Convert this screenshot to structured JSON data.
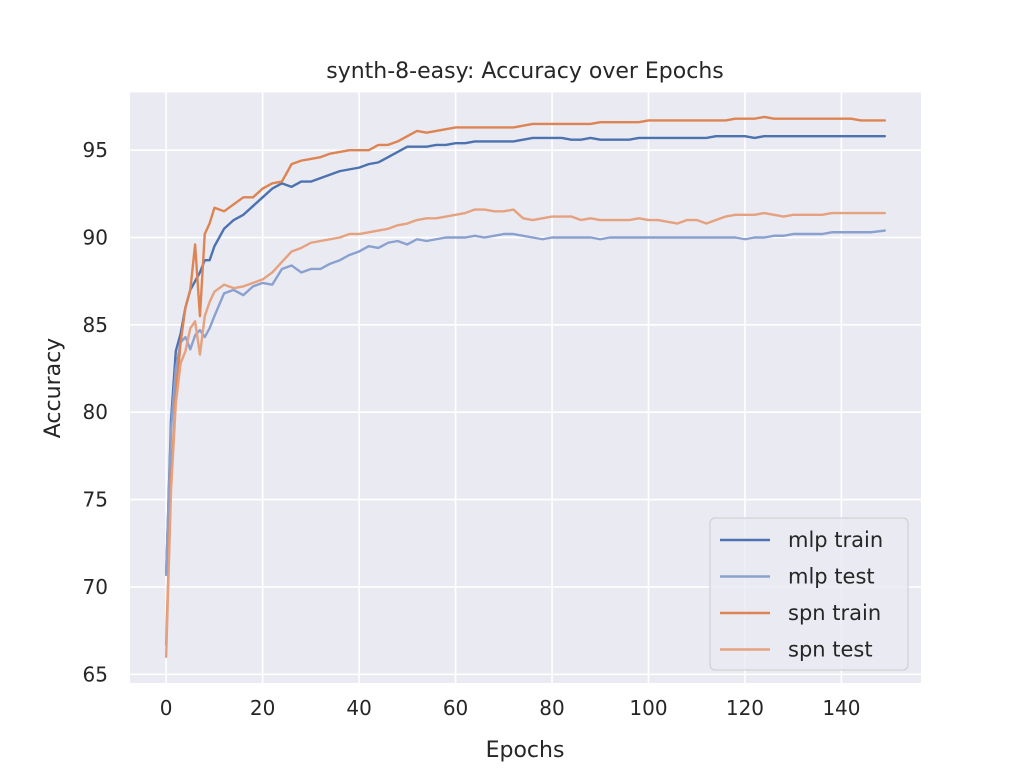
{
  "chart_data": {
    "type": "line",
    "title": "synth-8-easy: Accuracy over Epochs",
    "xlabel": "Epochs",
    "ylabel": "Accuracy",
    "xlim": [
      -7.5,
      156.5
    ],
    "ylim": [
      64.5,
      98.3
    ],
    "xticks": [
      0,
      20,
      40,
      60,
      80,
      100,
      120,
      140
    ],
    "yticks": [
      65,
      70,
      75,
      80,
      85,
      90,
      95
    ],
    "grid": true,
    "legend_position": "bottom-right",
    "x": [
      0,
      1,
      2,
      3,
      4,
      5,
      6,
      7,
      8,
      9,
      10,
      12,
      14,
      16,
      18,
      20,
      22,
      24,
      26,
      28,
      30,
      32,
      34,
      36,
      38,
      40,
      42,
      44,
      46,
      48,
      50,
      52,
      54,
      56,
      58,
      60,
      62,
      64,
      66,
      68,
      70,
      72,
      74,
      76,
      78,
      80,
      82,
      84,
      86,
      88,
      90,
      92,
      94,
      96,
      98,
      100,
      102,
      104,
      106,
      108,
      110,
      112,
      114,
      116,
      118,
      120,
      122,
      124,
      126,
      128,
      130,
      132,
      134,
      136,
      138,
      140,
      142,
      144,
      146,
      149
    ],
    "series": [
      {
        "name": "mlp train",
        "color": "#4c72b0",
        "opacity": 1.0,
        "values": [
          70.7,
          79.5,
          83.5,
          84.5,
          86.0,
          87.0,
          87.5,
          88.0,
          88.7,
          88.7,
          89.5,
          90.5,
          91.0,
          91.3,
          91.8,
          92.3,
          92.8,
          93.1,
          92.9,
          93.2,
          93.2,
          93.4,
          93.6,
          93.8,
          93.9,
          94.0,
          94.2,
          94.3,
          94.6,
          94.9,
          95.2,
          95.2,
          95.2,
          95.3,
          95.3,
          95.4,
          95.4,
          95.5,
          95.5,
          95.5,
          95.5,
          95.5,
          95.6,
          95.7,
          95.7,
          95.7,
          95.7,
          95.6,
          95.6,
          95.7,
          95.6,
          95.6,
          95.6,
          95.6,
          95.7,
          95.7,
          95.7,
          95.7,
          95.7,
          95.7,
          95.7,
          95.7,
          95.8,
          95.8,
          95.8,
          95.8,
          95.7,
          95.8,
          95.8,
          95.8,
          95.8,
          95.8,
          95.8,
          95.8,
          95.8,
          95.8,
          95.8,
          95.8,
          95.8,
          95.8
        ]
      },
      {
        "name": "mlp test",
        "color": "#8aa1cf",
        "opacity": 1.0,
        "values": [
          70.7,
          79.0,
          82.5,
          84.0,
          84.3,
          83.6,
          84.4,
          84.7,
          84.3,
          84.8,
          85.5,
          86.8,
          87.0,
          86.7,
          87.2,
          87.4,
          87.3,
          88.2,
          88.4,
          88.0,
          88.2,
          88.2,
          88.5,
          88.7,
          89.0,
          89.2,
          89.5,
          89.4,
          89.7,
          89.8,
          89.6,
          89.9,
          89.8,
          89.9,
          90.0,
          90.0,
          90.0,
          90.1,
          90.0,
          90.1,
          90.2,
          90.2,
          90.1,
          90.0,
          89.9,
          90.0,
          90.0,
          90.0,
          90.0,
          90.0,
          89.9,
          90.0,
          90.0,
          90.0,
          90.0,
          90.0,
          90.0,
          90.0,
          90.0,
          90.0,
          90.0,
          90.0,
          90.0,
          90.0,
          90.0,
          89.9,
          90.0,
          90.0,
          90.1,
          90.1,
          90.2,
          90.2,
          90.2,
          90.2,
          90.3,
          90.3,
          90.3,
          90.3,
          90.3,
          90.4
        ]
      },
      {
        "name": "spn train",
        "color": "#dd8452",
        "opacity": 1.0,
        "values": [
          66.7,
          76.0,
          81.0,
          84.0,
          86.0,
          87.0,
          89.6,
          85.5,
          90.2,
          90.8,
          91.7,
          91.5,
          91.9,
          92.3,
          92.3,
          92.8,
          93.1,
          93.2,
          94.2,
          94.4,
          94.5,
          94.6,
          94.8,
          94.9,
          95.0,
          95.0,
          95.0,
          95.3,
          95.3,
          95.5,
          95.8,
          96.1,
          96.0,
          96.1,
          96.2,
          96.3,
          96.3,
          96.3,
          96.3,
          96.3,
          96.3,
          96.3,
          96.4,
          96.5,
          96.5,
          96.5,
          96.5,
          96.5,
          96.5,
          96.5,
          96.6,
          96.6,
          96.6,
          96.6,
          96.6,
          96.7,
          96.7,
          96.7,
          96.7,
          96.7,
          96.7,
          96.7,
          96.7,
          96.7,
          96.8,
          96.8,
          96.8,
          96.9,
          96.8,
          96.8,
          96.8,
          96.8,
          96.8,
          96.8,
          96.8,
          96.8,
          96.8,
          96.7,
          96.7,
          96.7
        ]
      },
      {
        "name": "spn test",
        "color": "#e6a17e",
        "opacity": 1.0,
        "values": [
          66.0,
          75.5,
          80.5,
          82.8,
          83.5,
          84.8,
          85.2,
          83.3,
          85.5,
          86.3,
          86.9,
          87.3,
          87.1,
          87.2,
          87.4,
          87.6,
          88.0,
          88.6,
          89.2,
          89.4,
          89.7,
          89.8,
          89.9,
          90.0,
          90.2,
          90.2,
          90.3,
          90.4,
          90.5,
          90.7,
          90.8,
          91.0,
          91.1,
          91.1,
          91.2,
          91.3,
          91.4,
          91.6,
          91.6,
          91.5,
          91.5,
          91.6,
          91.1,
          91.0,
          91.1,
          91.2,
          91.2,
          91.2,
          91.0,
          91.1,
          91.0,
          91.0,
          91.0,
          91.0,
          91.1,
          91.0,
          91.0,
          90.9,
          90.8,
          91.0,
          91.0,
          90.8,
          91.0,
          91.2,
          91.3,
          91.3,
          91.3,
          91.4,
          91.3,
          91.2,
          91.3,
          91.3,
          91.3,
          91.3,
          91.4,
          91.4,
          91.4,
          91.4,
          91.4,
          91.4
        ]
      }
    ]
  }
}
